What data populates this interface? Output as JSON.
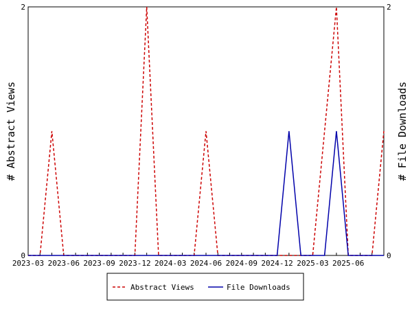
{
  "chart_data": {
    "type": "line",
    "x": [
      "2023-03",
      "2023-04",
      "2023-05",
      "2023-06",
      "2023-07",
      "2023-08",
      "2023-09",
      "2023-10",
      "2023-11",
      "2023-12",
      "2024-01",
      "2024-02",
      "2024-03",
      "2024-04",
      "2024-05",
      "2024-06",
      "2024-07",
      "2024-08",
      "2024-09",
      "2024-10",
      "2024-11",
      "2024-12",
      "2025-01",
      "2025-02",
      "2025-03",
      "2025-04",
      "2025-05",
      "2025-06",
      "2025-07",
      "2025-08",
      "2025-09"
    ],
    "x_tick_labels": [
      "2023-03",
      "2023-06",
      "2023-09",
      "2023-12",
      "2024-03",
      "2024-06",
      "2024-09",
      "2024-12",
      "2025-03",
      "2025-06"
    ],
    "series": [
      {
        "name": "Abstract Views",
        "axis": "left",
        "color": "#cc0000",
        "dash": "dashed",
        "values": [
          0,
          0,
          1,
          0,
          0,
          0,
          0,
          0,
          0,
          0,
          2,
          0,
          0,
          0,
          0,
          1,
          0,
          0,
          0,
          0,
          0,
          0,
          0,
          0,
          0,
          1,
          2,
          0,
          0,
          0,
          1
        ]
      },
      {
        "name": "File Downloads",
        "axis": "right",
        "color": "#0000aa",
        "dash": "solid",
        "values": [
          0,
          0,
          0,
          0,
          0,
          0,
          0,
          0,
          0,
          0,
          0,
          0,
          0,
          0,
          0,
          0,
          0,
          0,
          0,
          0,
          0,
          0,
          1,
          0,
          0,
          0,
          1,
          0,
          0,
          0,
          0
        ]
      }
    ],
    "ylabel_left": "# Abstract Views",
    "ylabel_right": "# File Downloads",
    "ylim": [
      0,
      2
    ],
    "y_ticks": [
      "0",
      "2"
    ],
    "grid": false,
    "legend_position": "bottom"
  }
}
